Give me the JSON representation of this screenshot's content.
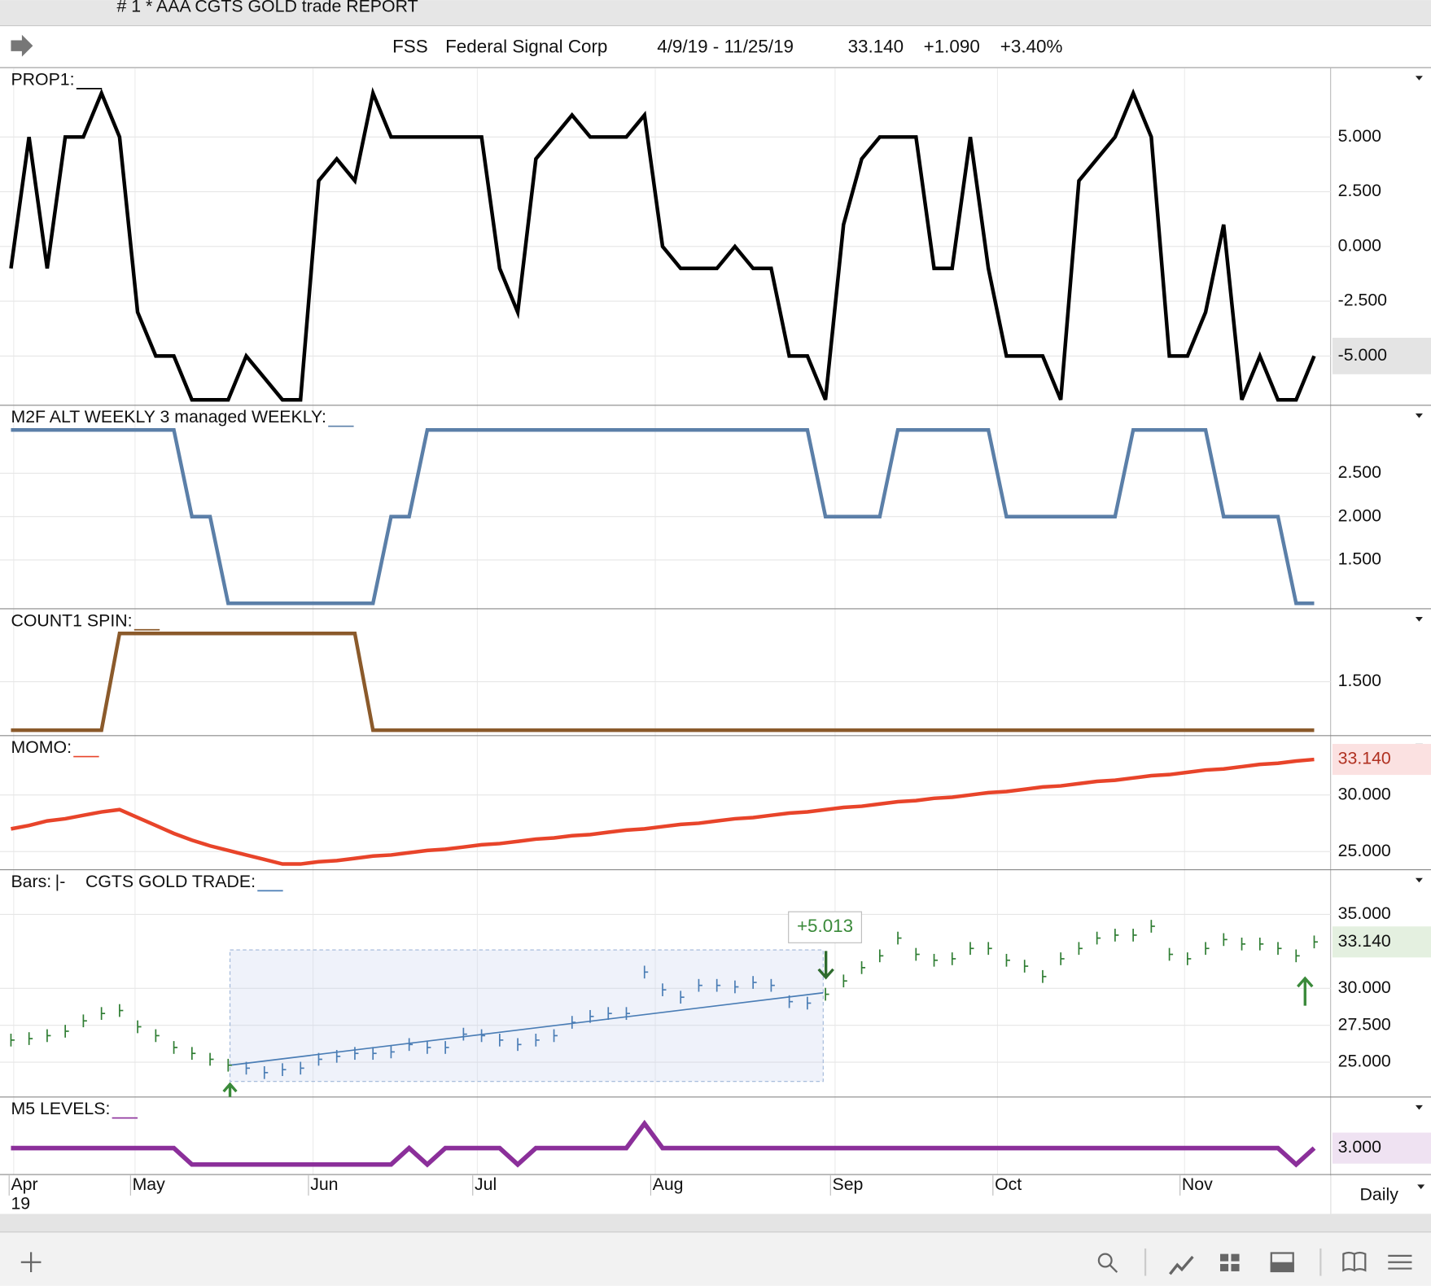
{
  "window": {
    "title": "# 1 *  AAA CGTS GOLD trade REPORT"
  },
  "header": {
    "symbol": "FSS",
    "name": "Federal Signal Corp",
    "range": "4/9/19 - 11/25/19",
    "last": "33.140",
    "change": "+1.090",
    "change_pct": "+3.40%"
  },
  "chart_data": [
    {
      "type": "line",
      "title": "PROP1:",
      "color": "#000000",
      "values": [
        -1,
        5,
        -1,
        5,
        5,
        7,
        5,
        -3,
        -5,
        -5,
        -7,
        -7,
        -7,
        -5,
        -6,
        -7,
        -7,
        3,
        4,
        3,
        7,
        5,
        5,
        5,
        5,
        5,
        5,
        -1,
        -3,
        4,
        5,
        6,
        5,
        5,
        5,
        6,
        0,
        -1,
        -1,
        -1,
        0,
        -1,
        -1,
        -5,
        -5,
        -7,
        1,
        4,
        5,
        5,
        5,
        -1,
        -1,
        5,
        -1,
        -5,
        -5,
        -5,
        -7,
        3,
        4,
        5,
        7,
        5,
        -5,
        -5,
        -3,
        1,
        -7,
        -5,
        -7,
        -7,
        -5
      ],
      "ylim": [
        -7.25,
        8.125
      ],
      "yticks": [
        {
          "value": 5,
          "label": "5.000"
        },
        {
          "value": 2.5,
          "label": "2.500"
        },
        {
          "value": 0,
          "label": "0.000"
        },
        {
          "value": -2.5,
          "label": "-2.500"
        },
        {
          "value": -5,
          "label": "-5.000"
        }
      ]
    },
    {
      "type": "line",
      "title": "M2F ALT WEEKLY 3 managed WEEKLY:",
      "color": "#5b7fa8",
      "values": [
        3,
        3,
        3,
        3,
        3,
        3,
        3,
        3,
        3,
        3,
        2,
        2,
        1,
        1,
        1,
        1,
        1,
        1,
        1,
        1,
        1,
        2,
        2,
        3,
        3,
        3,
        3,
        3,
        3,
        3,
        3,
        3,
        3,
        3,
        3,
        3,
        3,
        3,
        3,
        3,
        3,
        3,
        3,
        3,
        3,
        2,
        2,
        2,
        2,
        3,
        3,
        3,
        3,
        3,
        3,
        2,
        2,
        2,
        2,
        2,
        2,
        2,
        3,
        3,
        3,
        3,
        3,
        2,
        2,
        2,
        2,
        1,
        1
      ],
      "ylim": [
        0.937,
        3.274
      ],
      "yticks": [
        {
          "value": 2.5,
          "label": "2.500"
        },
        {
          "value": 2,
          "label": "2.000"
        },
        {
          "value": 1.5,
          "label": "1.500"
        }
      ]
    },
    {
      "type": "line",
      "title": "COUNT1 SPIN:",
      "color": "#8b5a2b",
      "values": [
        1,
        1,
        1,
        1,
        1,
        1,
        2,
        2,
        2,
        2,
        2,
        2,
        2,
        2,
        2,
        2,
        2,
        2,
        2,
        2,
        1,
        1,
        1,
        1,
        1,
        1,
        1,
        1,
        1,
        1,
        1,
        1,
        1,
        1,
        1,
        1,
        1,
        1,
        1,
        1,
        1,
        1,
        1,
        1,
        1,
        1,
        1,
        1,
        1,
        1,
        1,
        1,
        1,
        1,
        1,
        1,
        1,
        1,
        1,
        1,
        1,
        1,
        1,
        1,
        1,
        1,
        1,
        1,
        1,
        1,
        1,
        1,
        1
      ],
      "ylim": [
        0.943,
        2.245
      ],
      "yticks": [
        {
          "value": 1.5,
          "label": "1.500"
        }
      ]
    },
    {
      "type": "line",
      "title": "MOMO:",
      "color": "#e8442a",
      "values": [
        27.0,
        27.3,
        27.7,
        27.9,
        28.2,
        28.5,
        28.7,
        28.0,
        27.3,
        26.6,
        26.0,
        25.5,
        25.1,
        24.7,
        24.3,
        23.9,
        23.9,
        24.1,
        24.2,
        24.4,
        24.6,
        24.7,
        24.9,
        25.1,
        25.2,
        25.4,
        25.6,
        25.7,
        25.9,
        26.1,
        26.2,
        26.4,
        26.5,
        26.7,
        26.9,
        27.0,
        27.2,
        27.4,
        27.5,
        27.7,
        27.9,
        28.0,
        28.2,
        28.4,
        28.5,
        28.7,
        28.9,
        29.0,
        29.2,
        29.4,
        29.5,
        29.7,
        29.8,
        30.0,
        30.2,
        30.3,
        30.5,
        30.7,
        30.8,
        31.0,
        31.2,
        31.3,
        31.5,
        31.7,
        31.8,
        32.0,
        32.2,
        32.3,
        32.5,
        32.7,
        32.8,
        33.0,
        33.14
      ],
      "ylim": [
        23.39,
        35.16
      ],
      "yticks": [
        {
          "value": 30,
          "label": "30.000"
        },
        {
          "value": 25,
          "label": "25.000"
        }
      ],
      "last_label": {
        "value": 33.14,
        "label": "33.140"
      }
    },
    {
      "type": "tick",
      "title": "Bars:",
      "bar_style": "|-",
      "subtitle": "CGTS  GOLD TRADE:",
      "color": "#2e7d32",
      "trade_color": "#4a7db5",
      "values": [
        26.5,
        26.6,
        26.8,
        27.1,
        27.8,
        28.3,
        28.5,
        27.4,
        26.8,
        26.0,
        25.6,
        25.2,
        24.8,
        24.6,
        24.3,
        24.5,
        24.6,
        25.2,
        25.4,
        25.6,
        25.6,
        25.7,
        26.2,
        26.0,
        26.0,
        26.9,
        26.8,
        26.5,
        26.2,
        26.5,
        26.8,
        27.7,
        28.1,
        28.3,
        28.3,
        31.1,
        29.9,
        29.4,
        30.2,
        30.2,
        30.1,
        30.4,
        30.2,
        29.1,
        29.0,
        29.6,
        30.5,
        31.4,
        32.2,
        33.4,
        32.3,
        31.9,
        32.0,
        32.7,
        32.7,
        31.9,
        31.5,
        30.8,
        32.0,
        32.7,
        33.4,
        33.6,
        33.6,
        34.2,
        32.3,
        32.0,
        32.7,
        33.3,
        33.0,
        33.0,
        32.7,
        32.2,
        33.14
      ],
      "ylim": [
        22.65,
        37.96
      ],
      "yticks": [
        {
          "value": 35,
          "label": "35.000"
        },
        {
          "value": 30,
          "label": "30.000"
        },
        {
          "value": 27.5,
          "label": "27.500"
        },
        {
          "value": 25,
          "label": "25.000"
        }
      ],
      "last_label": {
        "value": 33.14,
        "label": "33.140"
      },
      "trade_box": {
        "label": "+5.013",
        "high": 32.6,
        "low": 23.7,
        "trend_start": 24.8,
        "trend_end": 29.7
      }
    },
    {
      "type": "line",
      "title": "M5 LEVELS:",
      "color": "#8b2f9a",
      "values": [
        3,
        3,
        3,
        3,
        3,
        3,
        3,
        3,
        3,
        3,
        2,
        2,
        2,
        2,
        2,
        2,
        2,
        2,
        2,
        2,
        2,
        2,
        3,
        2,
        3,
        3,
        3,
        3,
        2,
        3,
        3,
        3,
        3,
        3,
        3,
        4.5,
        3,
        3,
        3,
        3,
        3,
        3,
        3,
        3,
        3,
        3,
        3,
        3,
        3,
        3,
        3,
        3,
        3,
        3,
        3,
        3,
        3,
        3,
        3,
        3,
        3,
        3,
        3,
        3,
        3,
        3,
        3,
        3,
        3,
        3,
        3,
        2,
        3
      ],
      "ylim": [
        1.39,
        6.06
      ],
      "yticks": [],
      "last_label": {
        "value": 3,
        "label": "3.000"
      }
    }
  ],
  "time_axis": {
    "labels": [
      "Apr",
      "May",
      "Jun",
      "Jul",
      "Aug",
      "Sep",
      "Oct",
      "Nov"
    ],
    "year": "19",
    "period": "Daily"
  }
}
